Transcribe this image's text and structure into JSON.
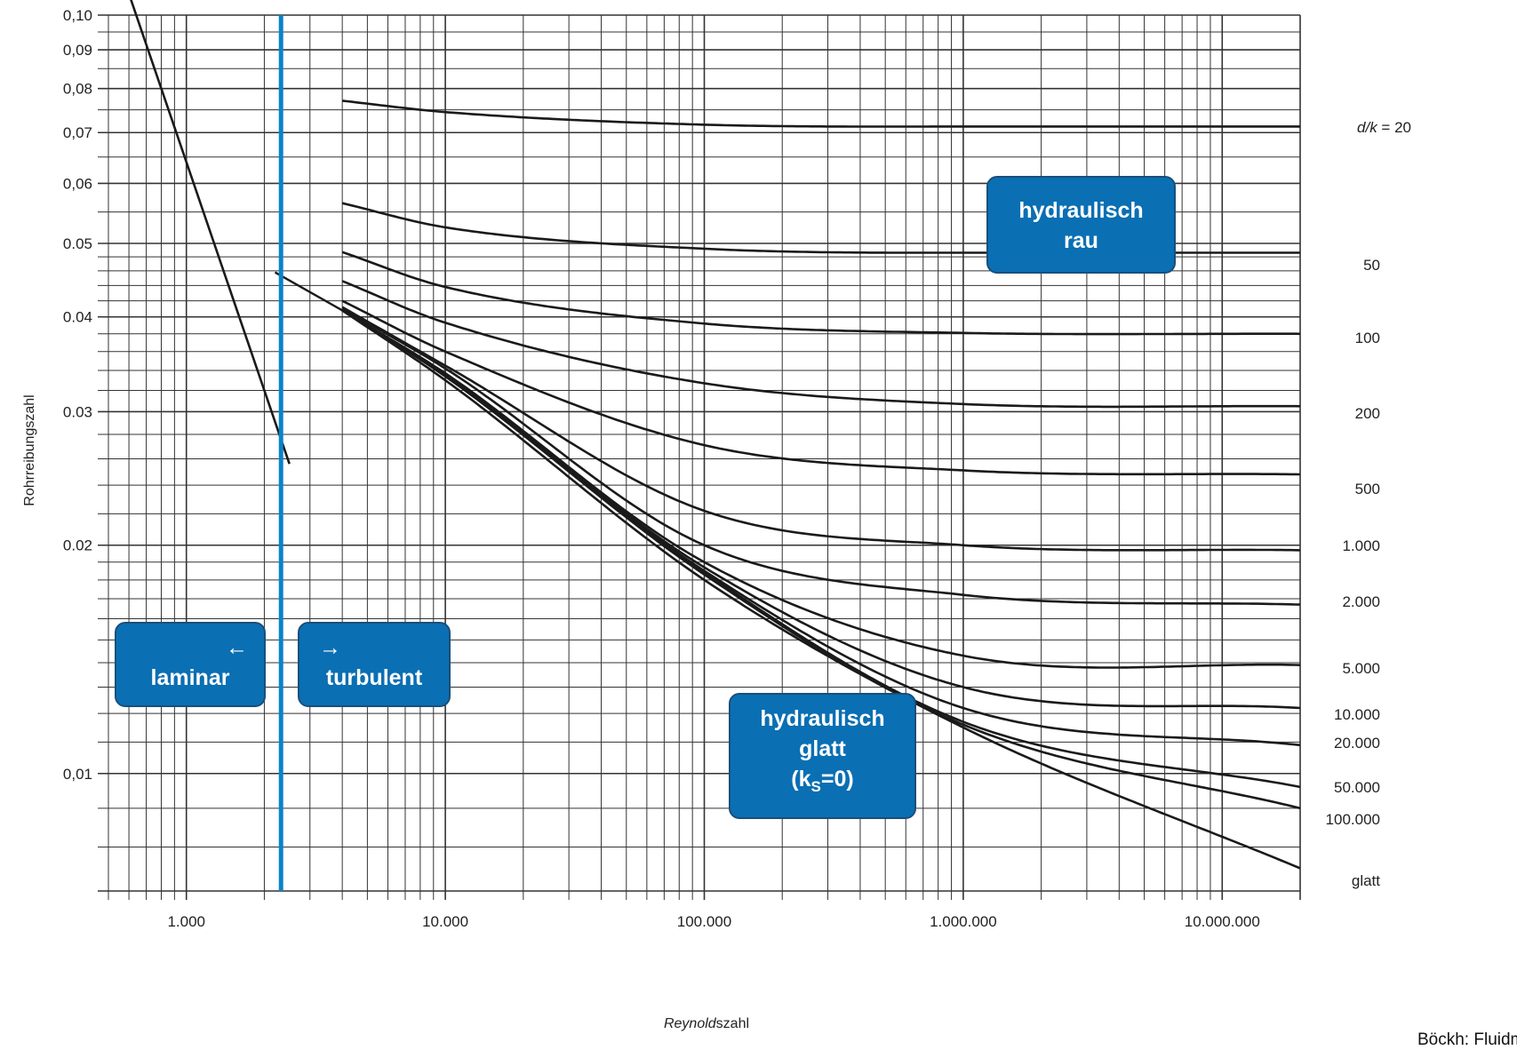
{
  "chart_data": {
    "type": "line",
    "title": "",
    "xlabel_italic": "Reynold",
    "xlabel_rest": "szahl",
    "ylabel": "Rohrreibungszahl",
    "x_scale": "log",
    "y_scale": "log",
    "xlim": [
      500,
      20000000
    ],
    "ylim": [
      0.007,
      0.1
    ],
    "x_ticks": [
      {
        "value": 1000,
        "label": "1.000"
      },
      {
        "value": 10000,
        "label": "10.000"
      },
      {
        "value": 100000,
        "label": "100.000"
      },
      {
        "value": 1000000,
        "label": "1.000.000"
      },
      {
        "value": 10000000,
        "label": "10.000.000"
      }
    ],
    "y_ticks": [
      {
        "value": 0.1,
        "label": "0,10"
      },
      {
        "value": 0.09,
        "label": "0,09"
      },
      {
        "value": 0.08,
        "label": "0,08"
      },
      {
        "value": 0.07,
        "label": "0,07"
      },
      {
        "value": 0.06,
        "label": "0,06"
      },
      {
        "value": 0.05,
        "label": "0.05"
      },
      {
        "value": 0.04,
        "label": "0.04"
      },
      {
        "value": 0.03,
        "label": "0.03"
      },
      {
        "value": 0.02,
        "label": "0.02"
      },
      {
        "value": 0.01,
        "label": "0,01"
      }
    ],
    "grid": true,
    "transition_Re": 2320,
    "laminar": {
      "x": [
        600,
        2500
      ],
      "y": [
        0.1067,
        0.0256
      ]
    },
    "transition_curve": {
      "x": [
        2200,
        2500
      ],
      "y": [
        0.0458,
        0.0448
      ]
    },
    "series": [
      {
        "name": "d/k = 20",
        "label": "d/k = 20",
        "x": [
          4000,
          10000,
          100000,
          1000000,
          20000000
        ],
        "y": [
          0.0771,
          0.0745,
          0.0717,
          0.0713,
          0.0713
        ]
      },
      {
        "name": "50",
        "label": "50",
        "x": [
          4000,
          10000,
          100000,
          1000000,
          20000000
        ],
        "y": [
          0.0565,
          0.0525,
          0.0492,
          0.0486,
          0.0486
        ]
      },
      {
        "name": "100",
        "label": "100",
        "x": [
          4000,
          10000,
          100000,
          1000000,
          20000000
        ],
        "y": [
          0.0487,
          0.0438,
          0.0392,
          0.0381,
          0.038
        ]
      },
      {
        "name": "200",
        "label": "200",
        "x": [
          4000,
          10000,
          100000,
          1000000,
          20000000
        ],
        "y": [
          0.0446,
          0.0393,
          0.0327,
          0.0307,
          0.0305
        ]
      },
      {
        "name": "500",
        "label": "500",
        "x": [
          4000,
          10000,
          100000,
          1000000,
          20000000
        ],
        "y": [
          0.042,
          0.036,
          0.0271,
          0.0251,
          0.0248
        ]
      },
      {
        "name": "1.000",
        "label": "1.000",
        "x": [
          4000,
          10000,
          100000,
          1000000,
          20000000
        ],
        "y": [
          0.0412,
          0.0345,
          0.0222,
          0.02,
          0.0197
        ]
      },
      {
        "name": "2.000",
        "label": "2.000",
        "x": [
          4000,
          10000,
          100000,
          1000000,
          20000000
        ],
        "y": [
          0.041,
          0.0342,
          0.02,
          0.0172,
          0.0167
        ]
      },
      {
        "name": "5.000",
        "label": "5.000",
        "x": [
          4000,
          10000,
          100000,
          1000000,
          20000000
        ],
        "y": [
          0.0408,
          0.0337,
          0.019,
          0.0143,
          0.0139
        ]
      },
      {
        "name": "10.000",
        "label": "10.000",
        "x": [
          4000,
          10000,
          100000,
          1000000,
          20000000
        ],
        "y": [
          0.0408,
          0.0336,
          0.0187,
          0.013,
          0.0122
        ]
      },
      {
        "name": "20.000",
        "label": "20.000",
        "x": [
          4000,
          10000,
          100000,
          1000000,
          20000000
        ],
        "y": [
          0.0408,
          0.0335,
          0.0185,
          0.0122,
          0.0109
        ]
      },
      {
        "name": "50.000",
        "label": "50.000",
        "x": [
          4000,
          10000,
          100000,
          1000000,
          20000000
        ],
        "y": [
          0.0408,
          0.0334,
          0.0184,
          0.0117,
          0.0096
        ]
      },
      {
        "name": "100.000",
        "label": "100.000",
        "x": [
          4000,
          10000,
          100000,
          1000000,
          20000000
        ],
        "y": [
          0.0408,
          0.0334,
          0.0183,
          0.0116,
          0.009
        ]
      },
      {
        "name": "glatt",
        "label": "glatt",
        "x": [
          4000,
          10000,
          100000,
          1000000,
          20000000
        ],
        "y": [
          0.0408,
          0.033,
          0.018,
          0.0115,
          0.0075
        ]
      }
    ],
    "annotations": {
      "laminar_arrow": "←",
      "laminar": "laminar",
      "turbulent_arrow": "→",
      "turbulent": "turbulent",
      "rau_line1": "hydraulisch",
      "rau_line2": "rau",
      "glatt_line1": "hydraulisch",
      "glatt_line2": "glatt",
      "glatt_line3_pre": "(k",
      "glatt_line3_sub": "S",
      "glatt_line3_post": "=0)"
    },
    "colors": {
      "curve": "#1a1a1a",
      "transition_line": "#0b84c6",
      "box_fill": "#0a6fb3",
      "grid": "#333333"
    },
    "source": "Böckh: Fluidmechanik"
  }
}
